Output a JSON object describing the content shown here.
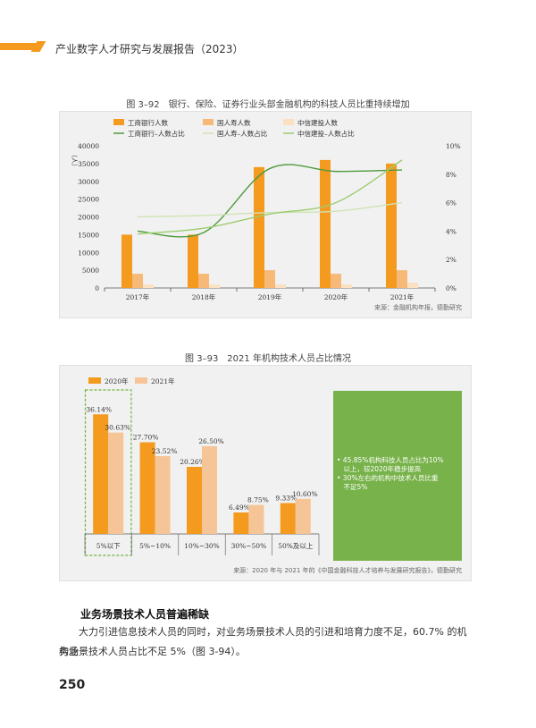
{
  "header": {
    "title": "产业数字人才研究与发展报告（2023）"
  },
  "fig1": {
    "caption": "图 3–92　银行、保险、证券行业头部金融机构的科技人员比重持续增加",
    "source": "来源：金融机构年报，德勤研究"
  },
  "fig2": {
    "caption": "图 3–93　2021 年机构技术人员占比情况",
    "source": "来源：2020 年与 2021 年的《中国金融科技人才培养与发展研究报告》，德勤研究",
    "notes": [
      "• 45.85%机构科技人员占比为10%",
      "　以上，较2020年稳步提高",
      "• 30%左右的机构中技术人员比重",
      "　不足5%"
    ]
  },
  "chart_data": [
    {
      "type": "bar",
      "title": "",
      "ylabel_left": "（人）",
      "ylim": [
        0,
        40000
      ],
      "ylim_right": [
        0,
        10
      ],
      "yticks": [
        "0",
        "5000",
        "10000",
        "15000",
        "20000",
        "25000",
        "30000",
        "35000",
        "40000"
      ],
      "yticks_right": [
        "0%",
        "2%",
        "4%",
        "6%",
        "8%",
        "10%"
      ],
      "categories": [
        "2017年",
        "2018年",
        "2019年",
        "2020年",
        "2021年"
      ],
      "series": [
        {
          "name": "工商银行人数",
          "kind": "bar",
          "axis": "left",
          "color": "#f39a1f",
          "values": [
            15000,
            15000,
            34000,
            36000,
            35000
          ]
        },
        {
          "name": "国人寿人数",
          "kind": "bar",
          "axis": "left",
          "color": "#f6b978",
          "values": [
            4000,
            4000,
            5000,
            4000,
            5000
          ]
        },
        {
          "name": "中信建投人数",
          "kind": "bar",
          "axis": "left",
          "color": "#fbe0c2",
          "values": [
            1000,
            1000,
            1000,
            1000,
            1500
          ]
        },
        {
          "name": "工商银行–人数占比",
          "kind": "line",
          "axis": "right",
          "color": "#4e9a3a",
          "values": [
            4.0,
            3.9,
            8.4,
            8.2,
            8.3
          ]
        },
        {
          "name": "国人寿–人数占比",
          "kind": "line",
          "axis": "right",
          "color": "#cfe3b4",
          "values": [
            5.0,
            5.1,
            5.3,
            5.4,
            6.0
          ]
        },
        {
          "name": "中信建投–人数占比",
          "kind": "line",
          "axis": "right",
          "color": "#9ccd6e",
          "values": [
            3.8,
            4.2,
            5.2,
            6.0,
            9.0
          ]
        }
      ],
      "legend": "top"
    },
    {
      "type": "bar",
      "title": "",
      "categories": [
        "5%以下",
        "5%~10%",
        "10%~30%",
        "30%~50%",
        "50%及以上"
      ],
      "series": [
        {
          "name": "2020年",
          "color": "#f39a1f",
          "values": [
            36.14,
            27.7,
            20.26,
            6.49,
            9.33
          ],
          "labels": [
            "36.14%",
            "27.70%",
            "20.26%",
            "6.49%",
            "9.33%"
          ]
        },
        {
          "name": "2021年",
          "color": "#f6c597",
          "values": [
            30.63,
            23.52,
            26.5,
            8.75,
            10.6
          ],
          "labels": [
            "30.63%",
            "23.52%",
            "26.50%",
            "8.75%",
            "10.60%"
          ]
        }
      ],
      "ylim": [
        0,
        40
      ],
      "highlight_category": "5%以下",
      "legend": "top-left"
    }
  ],
  "section": {
    "heading": "业务场景技术人员普遍稀缺",
    "paragraph_line1": "大力引进信息技术人员的同时，对业务场景技术人员的引进和培育力度不足，60.7% 的机构业",
    "paragraph_line2": "务场景技术人员占比不足 5%（图 3-94）。"
  },
  "page_number": "250"
}
